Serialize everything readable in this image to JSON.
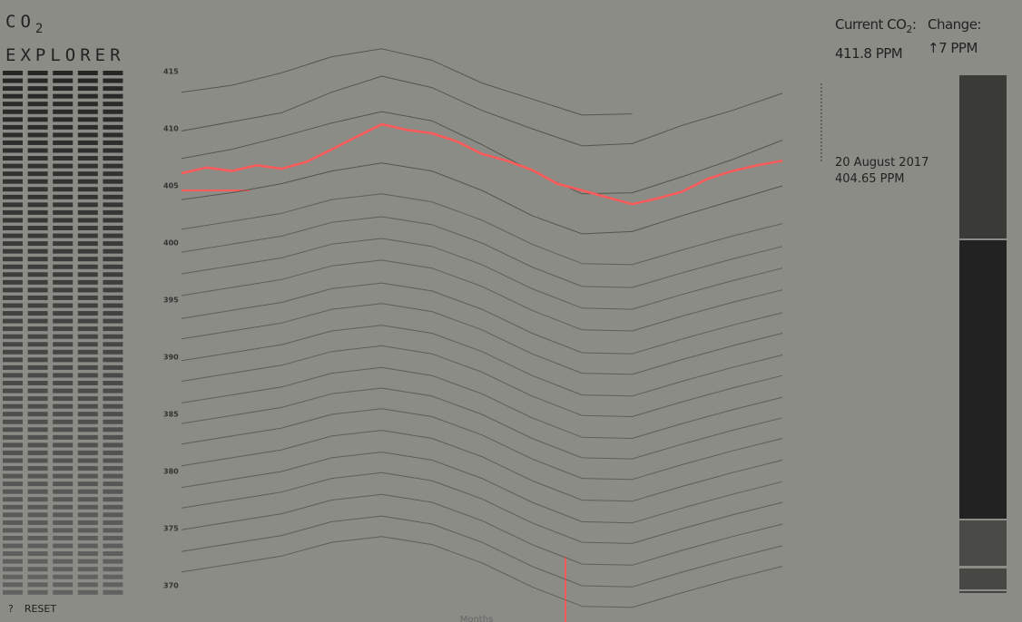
{
  "header": {
    "title_main": "CO",
    "title_sub": "2",
    "title_line2": "EXPLORER",
    "current_prefix": "Current CO",
    "current_sub": "2",
    "current_suffix": ":",
    "current_value": "411.8 PPM",
    "change_label": "Change:",
    "change_value": "↑7 PPM"
  },
  "footer": {
    "help": "?",
    "reset": "RESET"
  },
  "hover": {
    "date": "20 August 2017",
    "value": "404.65 PPM"
  },
  "chart_data": {
    "type": "line",
    "x_label": "Months",
    "ylim": [
      367,
      421
    ],
    "yticks": [
      370,
      375,
      380,
      385,
      390,
      395,
      400,
      405,
      410,
      415
    ],
    "series": [
      {
        "color": "#55554f",
        "values": [
          413.2,
          413.8,
          414.9,
          416.3,
          417.0,
          416.0,
          414.0,
          412.6,
          411.2,
          411.3,
          null,
          null,
          null
        ]
      },
      {
        "color": "#55554f",
        "values": [
          409.8,
          410.6,
          411.4,
          413.2,
          414.6,
          413.6,
          411.6,
          410.0,
          408.5,
          408.7,
          410.3,
          411.6,
          413.1
        ]
      },
      {
        "color": "#55554f",
        "values": [
          407.4,
          408.2,
          409.3,
          410.5,
          411.5,
          410.7,
          408.6,
          406.3,
          404.3,
          404.4,
          405.8,
          407.3,
          409.0
        ]
      },
      {
        "color": "#55554f",
        "values": [
          403.8,
          404.4,
          405.2,
          406.3,
          407.0,
          406.3,
          404.6,
          402.4,
          400.8,
          401.0,
          402.4,
          403.7,
          405.0
        ]
      },
      {
        "color": "#5f5f59",
        "values": [
          401.2,
          401.9,
          402.6,
          403.8,
          404.3,
          403.6,
          402.0,
          399.9,
          398.2,
          398.1,
          399.4,
          400.6,
          401.7
        ]
      },
      {
        "color": "#5f5f59",
        "values": [
          399.2,
          399.9,
          400.6,
          401.8,
          402.3,
          401.6,
          400.0,
          397.9,
          396.2,
          396.1,
          397.4,
          398.6,
          399.7
        ]
      },
      {
        "color": "#5f5f59",
        "values": [
          397.3,
          398.0,
          398.7,
          399.9,
          400.4,
          399.7,
          398.1,
          396.0,
          394.3,
          394.2,
          395.5,
          396.7,
          397.8
        ]
      },
      {
        "color": "#5f5f59",
        "values": [
          395.4,
          396.1,
          396.8,
          398.0,
          398.5,
          397.8,
          396.2,
          394.1,
          392.4,
          392.3,
          393.6,
          394.8,
          395.9
        ]
      },
      {
        "color": "#5f5f59",
        "values": [
          393.4,
          394.1,
          394.8,
          396.0,
          396.5,
          395.8,
          394.2,
          392.1,
          390.4,
          390.3,
          391.6,
          392.8,
          393.9
        ]
      },
      {
        "color": "#5f5f59",
        "values": [
          391.6,
          392.3,
          393.0,
          394.2,
          394.7,
          394.0,
          392.4,
          390.3,
          388.6,
          388.5,
          389.8,
          391.0,
          392.1
        ]
      },
      {
        "color": "#5f5f59",
        "values": [
          389.7,
          390.4,
          391.1,
          392.3,
          392.8,
          392.1,
          390.5,
          388.4,
          386.7,
          386.6,
          387.9,
          389.1,
          390.2
        ]
      },
      {
        "color": "#5f5f59",
        "values": [
          387.9,
          388.6,
          389.3,
          390.5,
          391.0,
          390.3,
          388.7,
          386.6,
          384.9,
          384.8,
          386.1,
          387.3,
          388.4
        ]
      },
      {
        "color": "#5f5f59",
        "values": [
          386.0,
          386.7,
          387.4,
          388.6,
          389.1,
          388.4,
          386.8,
          384.7,
          383.0,
          382.9,
          384.2,
          385.4,
          386.5
        ]
      },
      {
        "color": "#5f5f59",
        "values": [
          384.2,
          384.9,
          385.6,
          386.8,
          387.3,
          386.6,
          385.0,
          382.9,
          381.2,
          381.1,
          382.4,
          383.6,
          384.7
        ]
      },
      {
        "color": "#5f5f59",
        "values": [
          382.4,
          383.1,
          383.8,
          385.0,
          385.5,
          384.8,
          383.2,
          381.1,
          379.4,
          379.3,
          380.6,
          381.8,
          382.9
        ]
      },
      {
        "color": "#5f5f59",
        "values": [
          380.5,
          381.2,
          381.9,
          383.1,
          383.6,
          382.9,
          381.3,
          379.2,
          377.5,
          377.4,
          378.7,
          379.9,
          381.0
        ]
      },
      {
        "color": "#5f5f59",
        "values": [
          378.6,
          379.3,
          380.0,
          381.2,
          381.7,
          381.0,
          379.4,
          377.3,
          375.6,
          375.5,
          376.8,
          378.0,
          379.1
        ]
      },
      {
        "color": "#5f5f59",
        "values": [
          376.8,
          377.5,
          378.2,
          379.4,
          379.9,
          379.2,
          377.6,
          375.5,
          373.8,
          373.7,
          375.0,
          376.2,
          377.3
        ]
      },
      {
        "color": "#5f5f59",
        "values": [
          374.9,
          375.6,
          376.3,
          377.5,
          378.0,
          377.3,
          375.7,
          373.6,
          371.9,
          371.8,
          373.1,
          374.3,
          375.4
        ]
      },
      {
        "color": "#5f5f59",
        "values": [
          373.0,
          373.7,
          374.4,
          375.6,
          376.1,
          375.4,
          373.8,
          371.7,
          370.0,
          369.9,
          371.2,
          372.4,
          373.5
        ]
      },
      {
        "color": "#5f5f59",
        "values": [
          371.2,
          371.9,
          372.6,
          373.8,
          374.3,
          373.6,
          372.0,
          369.9,
          368.2,
          368.1,
          369.4,
          370.6,
          371.7
        ]
      },
      {
        "color": "#ff5a5a",
        "values": [
          406.1,
          406.6,
          406.3,
          406.8,
          406.5,
          407.1,
          408.2,
          409.3,
          410.4,
          409.9,
          409.6,
          408.9,
          407.8,
          407.2,
          406.4,
          405.2,
          404.6,
          404.0,
          403.4,
          403.9,
          404.5,
          405.6,
          406.3,
          406.8,
          407.2
        ]
      }
    ]
  }
}
